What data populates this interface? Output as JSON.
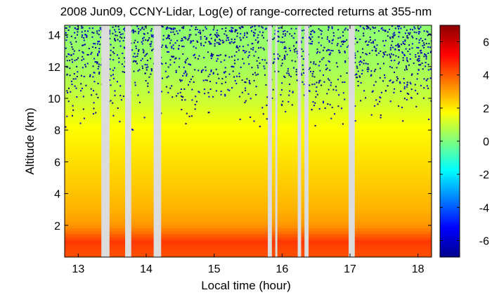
{
  "chart_data": {
    "type": "heatmap",
    "title": "2008 Jun09, CCNY-Lidar, Log(e) of range-corrected returns at 355-nm",
    "xlabel": "Local time (hour)",
    "ylabel": "Altitude (km)",
    "xlim": [
      12.8,
      18.2
    ],
    "ylim": [
      0,
      14.6
    ],
    "x_ticks": [
      13,
      14,
      15,
      16,
      17,
      18
    ],
    "x_tick_labels": [
      "13",
      "14",
      "15",
      "16",
      "17",
      "18"
    ],
    "y_ticks": [
      2,
      4,
      6,
      8,
      10,
      12,
      14
    ],
    "y_tick_labels": [
      "2",
      "4",
      "6",
      "8",
      "10",
      "12",
      "14"
    ],
    "colorbar": {
      "range": [
        -7,
        7
      ],
      "ticks": [
        -6,
        -4,
        -2,
        0,
        2,
        4,
        6
      ],
      "tick_labels": [
        "-6",
        "-4",
        "-2",
        "0",
        "2",
        "4",
        "6"
      ],
      "colormap": "jet"
    },
    "data_gaps_hours": [
      [
        13.34,
        13.46
      ],
      [
        13.69,
        13.78
      ],
      [
        14.11,
        14.22
      ],
      [
        15.79,
        15.85
      ],
      [
        15.9,
        15.93
      ],
      [
        16.23,
        16.28
      ],
      [
        16.33,
        16.39
      ],
      [
        16.98,
        17.07
      ]
    ],
    "profile_trend": [
      {
        "alt_km": 0.3,
        "value": 4.2
      },
      {
        "alt_km": 1.0,
        "value": 4.5
      },
      {
        "alt_km": 1.5,
        "value": 3.8
      },
      {
        "alt_km": 2.0,
        "value": 3.2
      },
      {
        "alt_km": 3.0,
        "value": 2.8
      },
      {
        "alt_km": 5.0,
        "value": 2.4
      },
      {
        "alt_km": 8.0,
        "value": 1.8
      },
      {
        "alt_km": 10.0,
        "value": 1.0
      },
      {
        "alt_km": 12.0,
        "value": 0.5
      },
      {
        "alt_km": 14.5,
        "value": 0.2
      }
    ],
    "noise_colors": {
      "low": "#00008b",
      "mid": "#0000d0"
    },
    "gap_color": "#dcdcdc",
    "grid": false
  }
}
